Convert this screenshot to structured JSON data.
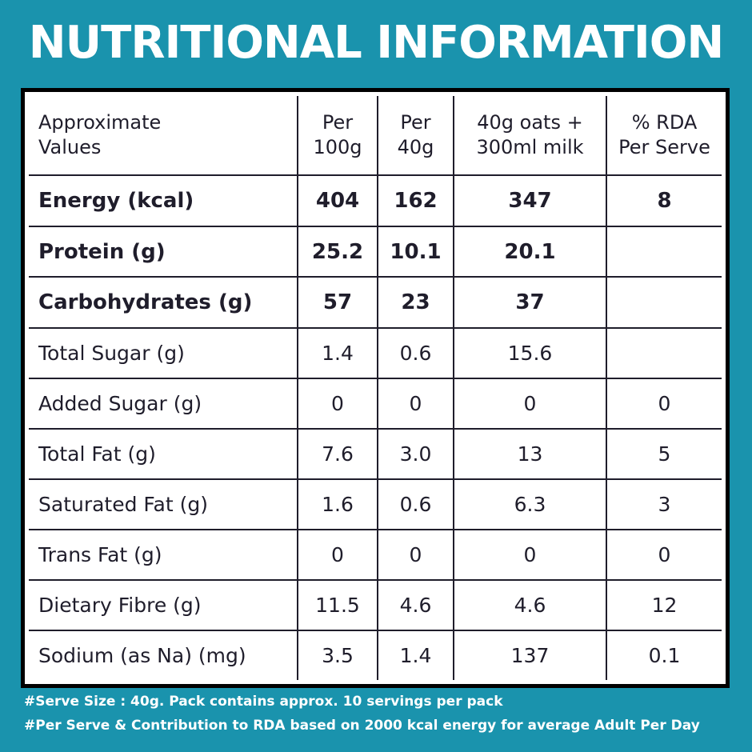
{
  "title": "NUTRITIONAL INFORMATION",
  "table": {
    "headers": [
      [
        "Approximate",
        "Values"
      ],
      [
        "Per",
        "100g"
      ],
      [
        "Per",
        "40g"
      ],
      [
        "40g oats +",
        "300ml milk"
      ],
      [
        "% RDA",
        "Per Serve"
      ]
    ],
    "rows": [
      {
        "label": "Energy (kcal)",
        "values": [
          "404",
          "162",
          "347",
          "8"
        ]
      },
      {
        "label": "Protein (g)",
        "values": [
          "25.2",
          "10.1",
          "20.1",
          ""
        ]
      },
      {
        "label": "Carbohydrates (g)",
        "values": [
          "57",
          "23",
          "37",
          ""
        ]
      },
      {
        "label": "Total Sugar (g)",
        "values": [
          "1.4",
          "0.6",
          "15.6",
          ""
        ]
      },
      {
        "label": "Added Sugar (g)",
        "values": [
          "0",
          "0",
          "0",
          "0"
        ]
      },
      {
        "label": "Total Fat (g)",
        "values": [
          "7.6",
          "3.0",
          "13",
          "5"
        ]
      },
      {
        "label": "Saturated Fat (g)",
        "values": [
          "1.6",
          "0.6",
          "6.3",
          "3"
        ]
      },
      {
        "label": "Trans Fat (g)",
        "values": [
          "0",
          "0",
          "0",
          "0"
        ]
      },
      {
        "label": "Dietary Fibre (g)",
        "values": [
          "11.5",
          "4.6",
          "4.6",
          "12"
        ]
      },
      {
        "label": "Sodium (as Na) (mg)",
        "values": [
          "3.5",
          "1.4",
          "137",
          "0.1"
        ]
      }
    ]
  },
  "footnotes": [
    "#Serve Size : 40g. Pack contains approx. 10 servings per pack",
    "#Per Serve & Contribution to RDA based on 2000 kcal energy for average Adult Per Day"
  ],
  "colors": {
    "background": "#1a93ad",
    "panel": "#ffffff",
    "text": "#1f1d2b",
    "title_text": "#ffffff"
  }
}
